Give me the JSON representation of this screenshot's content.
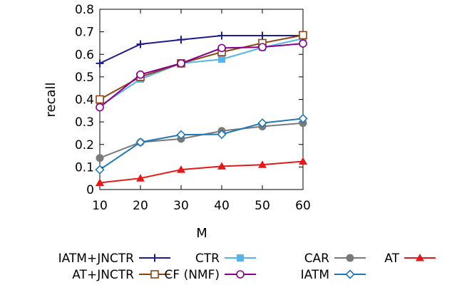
{
  "chart_data": {
    "type": "line",
    "xlabel": "M",
    "ylabel": "recall",
    "x": [
      10,
      20,
      30,
      40,
      50,
      60
    ],
    "xlim": [
      10,
      60
    ],
    "ylim": [
      0,
      0.8
    ],
    "xticks": [
      "10",
      "20",
      "30",
      "40",
      "50",
      "60"
    ],
    "yticks": [
      "0",
      "0.1",
      "0.2",
      "0.3",
      "0.4",
      "0.5",
      "0.6",
      "0.7",
      "0.8"
    ],
    "grid": false,
    "legend_position": "bottom",
    "series": [
      {
        "name": "IATM+JNCTR",
        "color": "#1c1c8c",
        "marker": "plus",
        "values": [
          0.56,
          0.645,
          0.665,
          0.683,
          0.683,
          0.683
        ]
      },
      {
        "name": "CTR",
        "color": "#56b4e9",
        "marker": "filled-square",
        "values": [
          0.37,
          0.49,
          0.56,
          0.578,
          0.63,
          0.67
        ]
      },
      {
        "name": "CAR",
        "color": "#7a7a7a",
        "marker": "filled-circle",
        "values": [
          0.14,
          0.21,
          0.225,
          0.26,
          0.28,
          0.295
        ]
      },
      {
        "name": "AT",
        "color": "#e31a1c",
        "marker": "filled-triangle",
        "values": [
          0.03,
          0.05,
          0.088,
          0.103,
          0.11,
          0.125
        ]
      },
      {
        "name": "AT+JNCTR",
        "color": "#8b4513",
        "marker": "open-square",
        "values": [
          0.4,
          0.5,
          0.56,
          0.61,
          0.65,
          0.685
        ]
      },
      {
        "name": "CF (NMF)",
        "color": "#8b008b",
        "marker": "open-circle",
        "values": [
          0.365,
          0.51,
          0.56,
          0.628,
          0.632,
          0.648
        ]
      },
      {
        "name": "IATM",
        "color": "#1f77b4",
        "marker": "open-diamond",
        "values": [
          0.088,
          0.21,
          0.243,
          0.245,
          0.295,
          0.315
        ]
      }
    ]
  }
}
